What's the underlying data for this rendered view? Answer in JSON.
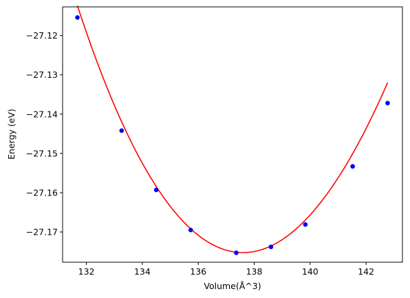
{
  "chart_data": {
    "type": "scatter",
    "title": "",
    "xlabel": "Volume(Å^3)",
    "ylabel": "Energy (eV)",
    "xlim": [
      131.15,
      143.3
    ],
    "ylim": [
      -27.1777,
      -27.1127
    ],
    "xticks": [
      132,
      134,
      136,
      138,
      140,
      142
    ],
    "xtick_labels": [
      "132",
      "134",
      "136",
      "138",
      "140",
      "142"
    ],
    "yticks": [
      -27.17,
      -27.16,
      -27.15,
      -27.14,
      -27.13,
      -27.12
    ],
    "ytick_labels": [
      "−27.17",
      "−27.16",
      "−27.15",
      "−27.14",
      "−27.13",
      "−27.12"
    ],
    "grid": false,
    "legend": "none",
    "series": [
      {
        "kind": "scatter",
        "color": "#0000ff",
        "x": [
          131.68,
          133.26,
          134.5,
          135.73,
          137.36,
          138.6,
          139.83,
          141.52,
          142.77
        ],
        "y": [
          -27.1154,
          -27.1442,
          -27.1593,
          -27.1695,
          -27.1753,
          -27.1738,
          -27.1681,
          -27.1533,
          -27.1372
        ]
      },
      {
        "kind": "line",
        "color": "#ff0000",
        "fit": {
          "x0": 137.6,
          "y0": -27.17525,
          "a": 0.0017,
          "b": -1.58e-05,
          "x_range": [
            131.68,
            142.77
          ]
        }
      }
    ]
  }
}
